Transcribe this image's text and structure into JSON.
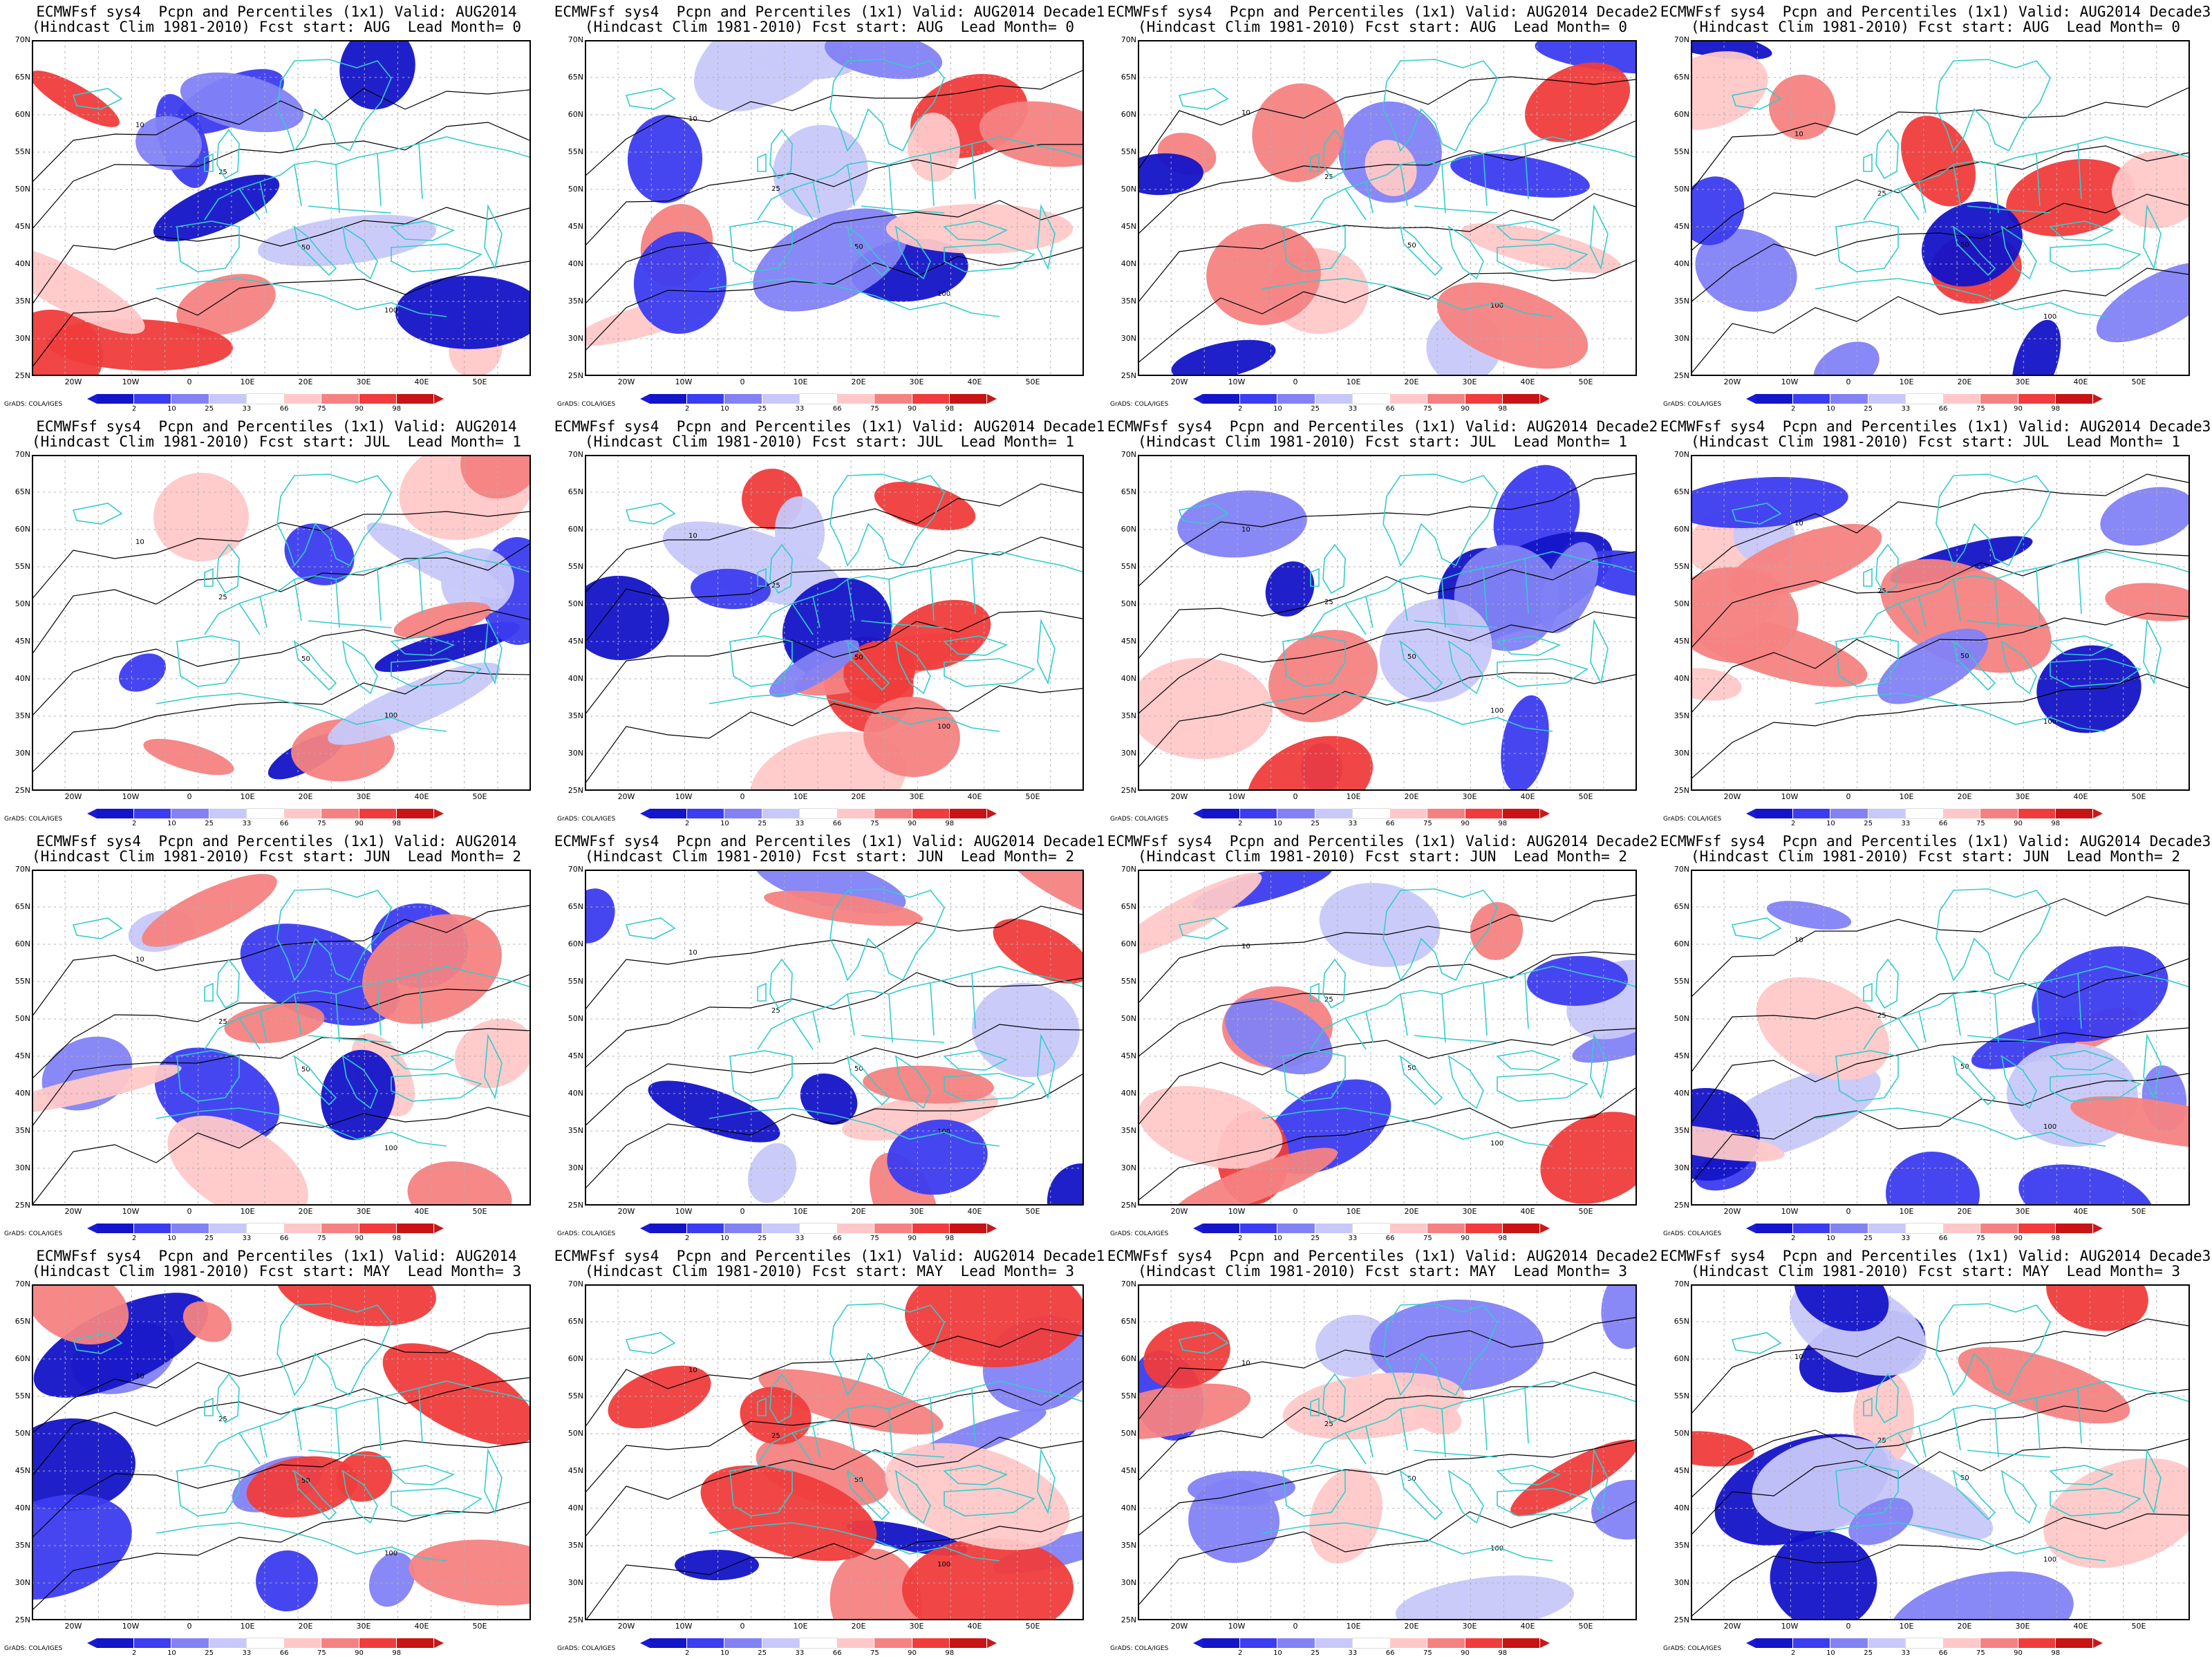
{
  "panels": [
    {
      "title1": "ECMWFsf sys4  Pcpn and Percentiles (1x1) Valid: AUG2014",
      "title2": "(Hindcast Clim 1981-2010) Fcst start: AUG  Lead Month= 0"
    },
    {
      "title1": "ECMWFsf sys4  Pcpn and Percentiles (1x1) Valid: AUG2014 Decade1",
      "title2": "(Hindcast Clim 1981-2010) Fcst start: AUG  Lead Month= 0"
    },
    {
      "title1": "ECMWFsf sys4  Pcpn and Percentiles (1x1) Valid: AUG2014 Decade2",
      "title2": "(Hindcast Clim 1981-2010) Fcst start: AUG  Lead Month= 0"
    },
    {
      "title1": "ECMWFsf sys4  Pcpn and Percentiles (1x1) Valid: AUG2014 Decade3",
      "title2": "(Hindcast Clim 1981-2010) Fcst start: AUG  Lead Month= 0"
    },
    {
      "title1": "ECMWFsf sys4  Pcpn and Percentiles (1x1) Valid: AUG2014",
      "title2": "(Hindcast Clim 1981-2010) Fcst start: JUL  Lead Month= 1"
    },
    {
      "title1": "ECMWFsf sys4  Pcpn and Percentiles (1x1) Valid: AUG2014 Decade1",
      "title2": "(Hindcast Clim 1981-2010) Fcst start: JUL  Lead Month= 1"
    },
    {
      "title1": "ECMWFsf sys4  Pcpn and Percentiles (1x1) Valid: AUG2014 Decade2",
      "title2": "(Hindcast Clim 1981-2010) Fcst start: JUL  Lead Month= 1"
    },
    {
      "title1": "ECMWFsf sys4  Pcpn and Percentiles (1x1) Valid: AUG2014 Decade3",
      "title2": "(Hindcast Clim 1981-2010) Fcst start: JUL  Lead Month= 1"
    },
    {
      "title1": "ECMWFsf sys4  Pcpn and Percentiles (1x1) Valid: AUG2014",
      "title2": "(Hindcast Clim 1981-2010) Fcst start: JUN  Lead Month= 2"
    },
    {
      "title1": "ECMWFsf sys4  Pcpn and Percentiles (1x1) Valid: AUG2014 Decade1",
      "title2": "(Hindcast Clim 1981-2010) Fcst start: JUN  Lead Month= 2"
    },
    {
      "title1": "ECMWFsf sys4  Pcpn and Percentiles (1x1) Valid: AUG2014 Decade2",
      "title2": "(Hindcast Clim 1981-2010) Fcst start: JUN  Lead Month= 2"
    },
    {
      "title1": "ECMWFsf sys4  Pcpn and Percentiles (1x1) Valid: AUG2014 Decade3",
      "title2": "(Hindcast Clim 1981-2010) Fcst start: JUN  Lead Month= 2"
    },
    {
      "title1": "ECMWFsf sys4  Pcpn and Percentiles (1x1) Valid: AUG2014",
      "title2": "(Hindcast Clim 1981-2010) Fcst start: MAY  Lead Month= 3"
    },
    {
      "title1": "ECMWFsf sys4  Pcpn and Percentiles (1x1) Valid: AUG2014 Decade1",
      "title2": "(Hindcast Clim 1981-2010) Fcst start: MAY  Lead Month= 3"
    },
    {
      "title1": "ECMWFsf sys4  Pcpn and Percentiles (1x1) Valid: AUG2014 Decade2",
      "title2": "(Hindcast Clim 1981-2010) Fcst start: MAY  Lead Month= 3"
    },
    {
      "title1": "ECMWFsf sys4  Pcpn and Percentiles (1x1) Valid: AUG2014 Decade3",
      "title2": "(Hindcast Clim 1981-2010) Fcst start: MAY  Lead Month= 3"
    }
  ],
  "lat_labels": [
    "70N",
    "65N",
    "60N",
    "55N",
    "50N",
    "45N",
    "40N",
    "35N",
    "30N",
    "25N"
  ],
  "lon_labels": [
    "20W",
    "10W",
    "0",
    "10E",
    "20E",
    "30E",
    "40E",
    "50E"
  ],
  "credit": "GrADS: COLA/IGES",
  "colorbar": {
    "labels": [
      "2",
      "10",
      "25",
      "33",
      "66",
      "75",
      "90",
      "98"
    ],
    "colors": [
      "#1414c8",
      "#3c3cf0",
      "#8282f5",
      "#c8c8fa",
      "#ffffff",
      "#ffc8c8",
      "#f58282",
      "#f03c3c",
      "#c81414"
    ]
  },
  "contour_labels": [
    "10",
    "25",
    "50",
    "100",
    "1"
  ],
  "colors": {
    "coast": "#33cccc",
    "contour": "#000000",
    "grid": "#b0b0b0",
    "frame": "#000000"
  }
}
